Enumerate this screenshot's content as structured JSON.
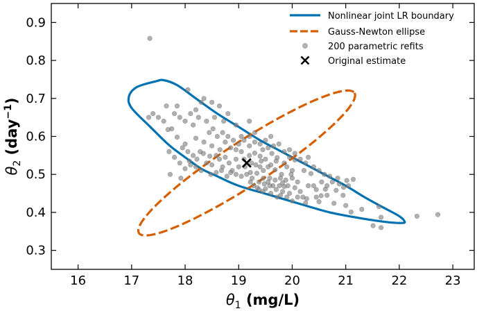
{
  "chart_data": {
    "type": "scatter",
    "xlim": [
      15.5,
      23.4
    ],
    "ylim": [
      0.25,
      0.95
    ],
    "xticks": [
      16,
      17,
      18,
      19,
      20,
      21,
      22,
      23
    ],
    "yticks": [
      0.3,
      0.4,
      0.5,
      0.6,
      0.7,
      0.8,
      0.9
    ],
    "xtick_labels": [
      "16",
      "17",
      "18",
      "19",
      "20",
      "21",
      "22",
      "23"
    ],
    "ytick_labels": [
      "0.3",
      "0.4",
      "0.5",
      "0.6",
      "0.7",
      "0.8",
      "0.9"
    ],
    "xlabel": {
      "var": "θ",
      "sub": "1",
      "unit": " (mg/L)"
    },
    "ylabel": {
      "var": "θ",
      "sub": "2",
      "unit_open": " (day",
      "sup": "−1",
      "unit_close": ")"
    },
    "legend_position": "top-right",
    "grid": false,
    "colors": {
      "lr_boundary": "#0072b2",
      "gn_ellipse": "#d55e00",
      "refits": "#808080",
      "estimate": "#000000"
    },
    "legend": [
      {
        "label": "Nonlinear joint LR boundary",
        "style": "solid-line",
        "color": "#0072b2"
      },
      {
        "label": "Gauss-Newton ellipse",
        "style": "dashed-line",
        "color": "#d55e00"
      },
      {
        "label": "200 parametric refits",
        "style": "marker-circle",
        "color": "#808080"
      },
      {
        "label": "Original estimate",
        "style": "marker-x",
        "color": "#000000"
      }
    ],
    "series": [
      {
        "name": "Nonlinear joint LR boundary",
        "kind": "closed-curve",
        "points": [
          [
            17.45,
            0.745
          ],
          [
            17.1,
            0.73
          ],
          [
            16.95,
            0.705
          ],
          [
            17.0,
            0.675
          ],
          [
            17.35,
            0.625
          ],
          [
            17.7,
            0.577
          ],
          [
            18.0,
            0.545
          ],
          [
            18.3,
            0.515
          ],
          [
            18.6,
            0.495
          ],
          [
            19.0,
            0.47
          ],
          [
            19.6,
            0.445
          ],
          [
            20.2,
            0.42
          ],
          [
            20.7,
            0.4
          ],
          [
            21.3,
            0.384
          ],
          [
            21.8,
            0.374
          ],
          [
            22.05,
            0.372
          ],
          [
            22.1,
            0.376
          ],
          [
            22.0,
            0.39
          ],
          [
            21.7,
            0.413
          ],
          [
            21.35,
            0.44
          ],
          [
            21.0,
            0.47
          ],
          [
            20.6,
            0.5
          ],
          [
            20.2,
            0.53
          ],
          [
            19.8,
            0.56
          ],
          [
            19.4,
            0.59
          ],
          [
            19.0,
            0.625
          ],
          [
            18.6,
            0.66
          ],
          [
            18.2,
            0.7
          ],
          [
            17.85,
            0.735
          ],
          [
            17.6,
            0.748
          ]
        ]
      },
      {
        "name": "Gauss-Newton ellipse",
        "kind": "ellipse",
        "center": [
          19.15,
          0.53
        ],
        "semi_axes": [
          2.4,
          0.058
        ],
        "rotation_deg": -33
      },
      {
        "name": "200 parametric refits",
        "kind": "scatter",
        "points": [
          [
            17.34,
            0.858
          ],
          [
            22.72,
            0.394
          ],
          [
            22.33,
            0.39
          ],
          [
            21.66,
            0.36
          ],
          [
            21.66,
            0.387
          ],
          [
            21.51,
            0.365
          ],
          [
            21.1,
            0.401
          ],
          [
            21.3,
            0.408
          ],
          [
            21.62,
            0.415
          ],
          [
            21.0,
            0.418
          ],
          [
            20.78,
            0.424
          ],
          [
            20.82,
            0.458
          ],
          [
            20.95,
            0.445
          ],
          [
            20.88,
            0.475
          ],
          [
            20.96,
            0.466
          ],
          [
            21.14,
            0.487
          ],
          [
            21.02,
            0.484
          ],
          [
            20.62,
            0.461
          ],
          [
            20.54,
            0.444
          ],
          [
            20.5,
            0.428
          ],
          [
            20.27,
            0.436
          ],
          [
            20.2,
            0.44
          ],
          [
            20.1,
            0.44
          ],
          [
            20.3,
            0.47
          ],
          [
            20.45,
            0.46
          ],
          [
            20.35,
            0.502
          ],
          [
            20.22,
            0.51
          ],
          [
            20.1,
            0.48
          ],
          [
            20.0,
            0.49
          ],
          [
            19.92,
            0.47
          ],
          [
            19.85,
            0.468
          ],
          [
            19.82,
            0.478
          ],
          [
            19.76,
            0.47
          ],
          [
            19.72,
            0.44
          ],
          [
            19.6,
            0.45
          ],
          [
            19.64,
            0.47
          ],
          [
            19.58,
            0.49
          ],
          [
            19.5,
            0.462
          ],
          [
            19.46,
            0.49
          ],
          [
            19.38,
            0.48
          ],
          [
            19.34,
            0.503
          ],
          [
            19.28,
            0.47
          ],
          [
            19.22,
            0.48
          ],
          [
            19.4,
            0.52
          ],
          [
            19.46,
            0.51
          ],
          [
            19.55,
            0.52
          ],
          [
            19.68,
            0.512
          ],
          [
            19.8,
            0.5
          ],
          [
            19.9,
            0.52
          ],
          [
            20.0,
            0.51
          ],
          [
            20.05,
            0.538
          ],
          [
            19.95,
            0.545
          ],
          [
            19.72,
            0.544
          ],
          [
            19.62,
            0.555
          ],
          [
            19.5,
            0.54
          ],
          [
            19.4,
            0.548
          ],
          [
            19.3,
            0.556
          ],
          [
            19.24,
            0.53
          ],
          [
            19.2,
            0.55
          ],
          [
            19.1,
            0.54
          ],
          [
            19.05,
            0.56
          ],
          [
            19.0,
            0.52
          ],
          [
            18.95,
            0.54
          ],
          [
            18.88,
            0.51
          ],
          [
            18.82,
            0.53
          ],
          [
            18.75,
            0.545
          ],
          [
            18.7,
            0.52
          ],
          [
            18.64,
            0.54
          ],
          [
            18.58,
            0.55
          ],
          [
            18.5,
            0.525
          ],
          [
            18.46,
            0.548
          ],
          [
            18.4,
            0.53
          ],
          [
            18.34,
            0.555
          ],
          [
            18.28,
            0.56
          ],
          [
            18.22,
            0.54
          ],
          [
            18.15,
            0.55
          ],
          [
            18.1,
            0.525
          ],
          [
            18.05,
            0.56
          ],
          [
            18.0,
            0.58
          ],
          [
            17.95,
            0.57
          ],
          [
            17.85,
            0.598
          ],
          [
            17.7,
            0.56
          ],
          [
            17.75,
            0.62
          ],
          [
            17.68,
            0.618
          ],
          [
            17.6,
            0.64
          ],
          [
            17.5,
            0.65
          ],
          [
            17.4,
            0.66
          ],
          [
            17.32,
            0.65
          ],
          [
            17.65,
            0.68
          ],
          [
            17.8,
            0.66
          ],
          [
            17.9,
            0.65
          ],
          [
            18.0,
            0.64
          ],
          [
            18.1,
            0.66
          ],
          [
            18.2,
            0.67
          ],
          [
            18.3,
            0.69
          ],
          [
            18.25,
            0.65
          ],
          [
            18.4,
            0.64
          ],
          [
            18.45,
            0.61
          ],
          [
            18.52,
            0.62
          ],
          [
            18.6,
            0.6
          ],
          [
            18.7,
            0.61
          ],
          [
            18.8,
            0.6
          ],
          [
            18.9,
            0.59
          ],
          [
            19.0,
            0.58
          ],
          [
            19.1,
            0.59
          ],
          [
            19.2,
            0.6
          ],
          [
            19.3,
            0.61
          ],
          [
            19.4,
            0.58
          ],
          [
            19.5,
            0.59
          ],
          [
            19.6,
            0.6
          ],
          [
            19.2,
            0.64
          ],
          [
            18.95,
            0.63
          ],
          [
            18.72,
            0.64
          ],
          [
            18.55,
            0.65
          ],
          [
            18.35,
            0.7
          ],
          [
            18.5,
            0.69
          ],
          [
            18.64,
            0.68
          ],
          [
            18.8,
            0.66
          ],
          [
            18.05,
            0.723
          ],
          [
            17.85,
            0.68
          ],
          [
            18.15,
            0.63
          ],
          [
            18.2,
            0.595
          ],
          [
            18.35,
            0.585
          ],
          [
            18.5,
            0.575
          ],
          [
            18.65,
            0.565
          ],
          [
            18.75,
            0.585
          ],
          [
            18.85,
            0.57
          ],
          [
            18.95,
            0.565
          ],
          [
            19.05,
            0.6
          ],
          [
            19.2,
            0.575
          ],
          [
            19.3,
            0.585
          ],
          [
            19.45,
            0.565
          ],
          [
            19.55,
            0.57
          ],
          [
            19.65,
            0.575
          ],
          [
            19.75,
            0.58
          ],
          [
            19.85,
            0.56
          ],
          [
            19.95,
            0.565
          ],
          [
            20.05,
            0.555
          ],
          [
            20.15,
            0.54
          ],
          [
            20.25,
            0.53
          ],
          [
            20.3,
            0.545
          ],
          [
            20.4,
            0.52
          ],
          [
            20.5,
            0.51
          ],
          [
            20.6,
            0.5
          ],
          [
            20.7,
            0.495
          ],
          [
            20.55,
            0.48
          ],
          [
            20.65,
            0.47
          ],
          [
            20.75,
            0.48
          ],
          [
            20.85,
            0.49
          ],
          [
            21.05,
            0.47
          ],
          [
            20.4,
            0.47
          ],
          [
            20.15,
            0.455
          ],
          [
            20.05,
            0.465
          ],
          [
            19.95,
            0.45
          ],
          [
            19.82,
            0.455
          ],
          [
            19.7,
            0.46
          ],
          [
            19.55,
            0.48
          ],
          [
            19.45,
            0.455
          ],
          [
            19.35,
            0.465
          ],
          [
            19.25,
            0.49
          ],
          [
            19.15,
            0.5
          ],
          [
            19.05,
            0.495
          ],
          [
            18.95,
            0.5
          ],
          [
            18.85,
            0.505
          ],
          [
            18.78,
            0.495
          ],
          [
            18.68,
            0.51
          ],
          [
            18.58,
            0.505
          ],
          [
            18.48,
            0.5
          ],
          [
            18.3,
            0.51
          ],
          [
            18.2,
            0.52
          ],
          [
            18.08,
            0.535
          ],
          [
            18.0,
            0.515
          ],
          [
            17.9,
            0.53
          ],
          [
            17.8,
            0.545
          ],
          [
            17.72,
            0.5
          ],
          [
            17.92,
            0.49
          ],
          [
            19.12,
            0.52
          ],
          [
            19.22,
            0.505
          ],
          [
            19.32,
            0.525
          ],
          [
            19.42,
            0.535
          ],
          [
            19.6,
            0.525
          ],
          [
            19.7,
            0.535
          ],
          [
            19.85,
            0.53
          ],
          [
            19.98,
            0.5
          ],
          [
            19.88,
            0.485
          ],
          [
            19.78,
            0.49
          ],
          [
            19.68,
            0.485
          ],
          [
            19.58,
            0.47
          ],
          [
            19.48,
            0.475
          ],
          [
            19.38,
            0.46
          ],
          [
            19.78,
            0.445
          ],
          [
            19.9,
            0.44
          ],
          [
            20.0,
            0.43
          ],
          [
            20.25,
            0.425
          ],
          [
            20.45,
            0.44
          ],
          [
            20.65,
            0.445
          ]
        ]
      },
      {
        "name": "Original estimate",
        "kind": "point",
        "point": [
          19.15,
          0.53
        ]
      }
    ]
  }
}
